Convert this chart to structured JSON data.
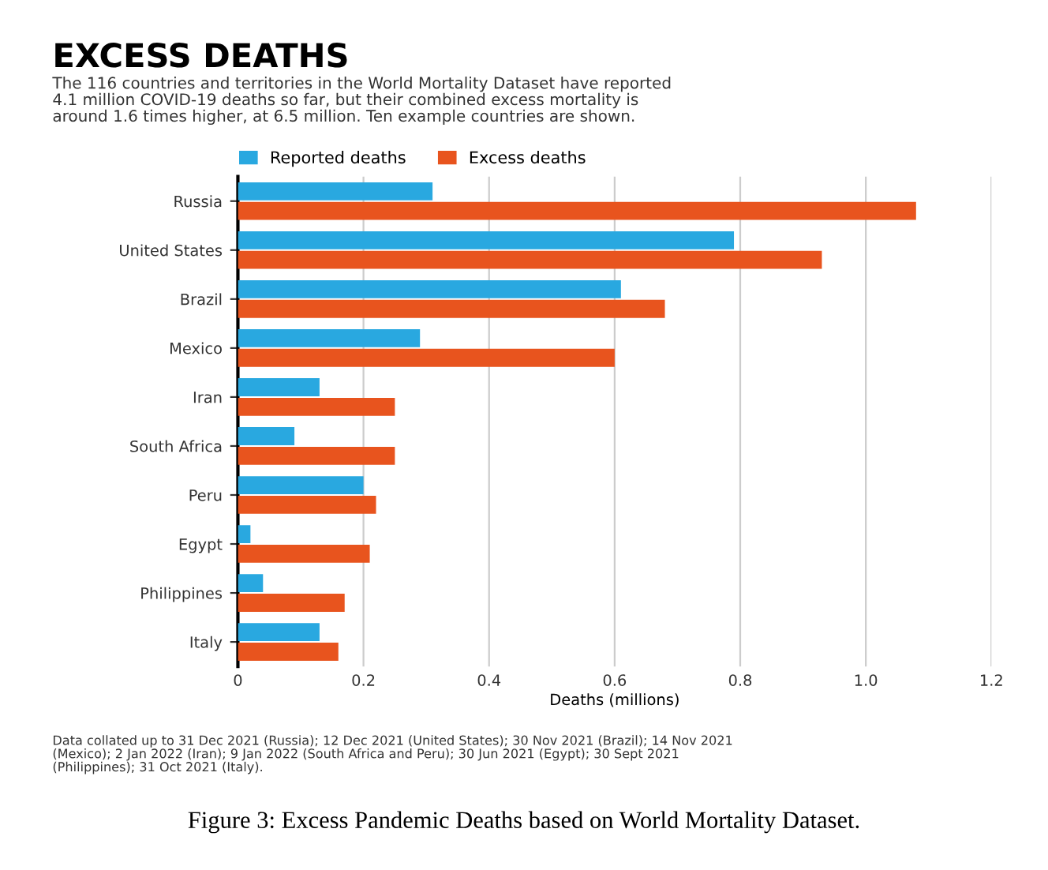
{
  "chart_data": {
    "type": "bar",
    "orientation": "horizontal",
    "title": "EXCESS DEATHS",
    "subtitle": "The 116 countries and territories in the World Mortality Dataset have reported\n4.1 million COVID-19 deaths so far, but their combined excess mortality is\naround 1.6 times higher, at 6.5 million. Ten example countries are shown.",
    "categories": [
      "Russia",
      "United States",
      "Brazil",
      "Mexico",
      "Iran",
      "South Africa",
      "Peru",
      "Egypt",
      "Philippines",
      "Italy"
    ],
    "series": [
      {
        "name": "Reported deaths",
        "color": "#29a8e0",
        "values": [
          0.31,
          0.79,
          0.61,
          0.29,
          0.13,
          0.09,
          0.2,
          0.02,
          0.04,
          0.13
        ]
      },
      {
        "name": "Excess deaths",
        "color": "#e8541e",
        "values": [
          1.08,
          0.93,
          0.68,
          0.6,
          0.25,
          0.25,
          0.22,
          0.21,
          0.17,
          0.16
        ]
      }
    ],
    "xlabel": "Deaths (millions)",
    "xlim": [
      0,
      1.2
    ],
    "xticks": [
      0,
      0.2,
      0.4,
      0.6,
      0.8,
      {
        "value": 1.0,
        "label": "1.0"
      },
      1.2
    ],
    "grid": "x",
    "legend": "top left",
    "annotations": [
      "Data collated up to 31 Dec 2021 (Russia); 12 Dec 2021 (United States); 30 Nov 2021 (Brazil); 14 Nov 2021\n(Mexico); 2 Jan 2022 (Iran); 9 Jan 2022 (South Africa and Peru); 30 Jun 2021 (Egypt); 30 Sept 2021\n(Philippines); 31 Oct 2021 (Italy).",
      "Figure 3: Excess Pandemic Deaths based on World Mortality Dataset."
    ]
  }
}
